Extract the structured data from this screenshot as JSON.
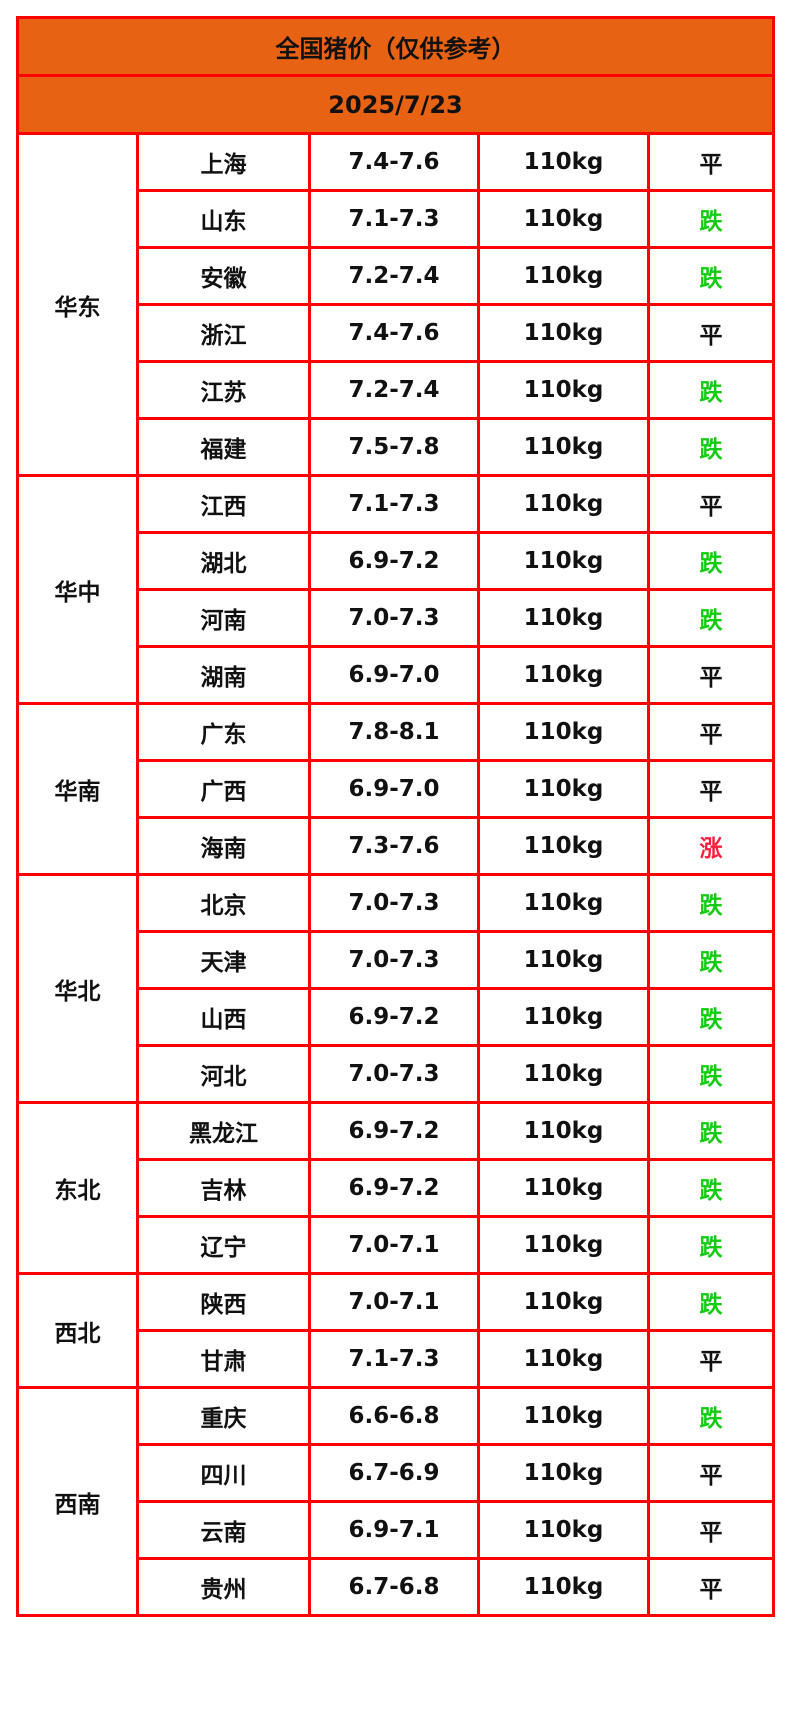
{
  "title": "全国猪价（仅供参考）",
  "date": "2025/7/23",
  "colors": {
    "header_bg": "#e86214",
    "border": "#ff0000",
    "up": "#ff2040",
    "down": "#11cc11",
    "flat": "#111111"
  },
  "regions": [
    {
      "name": "华东",
      "rows": [
        {
          "province": "上海",
          "price": "7.4-7.6",
          "weight": "110kg",
          "trend": "平"
        },
        {
          "province": "山东",
          "price": "7.1-7.3",
          "weight": "110kg",
          "trend": "跌"
        },
        {
          "province": "安徽",
          "price": "7.2-7.4",
          "weight": "110kg",
          "trend": "跌"
        },
        {
          "province": "浙江",
          "price": "7.4-7.6",
          "weight": "110kg",
          "trend": "平"
        },
        {
          "province": "江苏",
          "price": "7.2-7.4",
          "weight": "110kg",
          "trend": "跌"
        },
        {
          "province": "福建",
          "price": "7.5-7.8",
          "weight": "110kg",
          "trend": "跌"
        }
      ]
    },
    {
      "name": "华中",
      "rows": [
        {
          "province": "江西",
          "price": "7.1-7.3",
          "weight": "110kg",
          "trend": "平"
        },
        {
          "province": "湖北",
          "price": "6.9-7.2",
          "weight": "110kg",
          "trend": "跌"
        },
        {
          "province": "河南",
          "price": "7.0-7.3",
          "weight": "110kg",
          "trend": "跌"
        },
        {
          "province": "湖南",
          "price": "6.9-7.0",
          "weight": "110kg",
          "trend": "平"
        }
      ]
    },
    {
      "name": "华南",
      "rows": [
        {
          "province": "广东",
          "price": "7.8-8.1",
          "weight": "110kg",
          "trend": "平"
        },
        {
          "province": "广西",
          "price": "6.9-7.0",
          "weight": "110kg",
          "trend": "平"
        },
        {
          "province": "海南",
          "price": "7.3-7.6",
          "weight": "110kg",
          "trend": "涨"
        }
      ]
    },
    {
      "name": "华北",
      "rows": [
        {
          "province": "北京",
          "price": "7.0-7.3",
          "weight": "110kg",
          "trend": "跌"
        },
        {
          "province": "天津",
          "price": "7.0-7.3",
          "weight": "110kg",
          "trend": "跌"
        },
        {
          "province": "山西",
          "price": "6.9-7.2",
          "weight": "110kg",
          "trend": "跌"
        },
        {
          "province": "河北",
          "price": "7.0-7.3",
          "weight": "110kg",
          "trend": "跌"
        }
      ]
    },
    {
      "name": "东北",
      "rows": [
        {
          "province": "黑龙江",
          "price": "6.9-7.2",
          "weight": "110kg",
          "trend": "跌"
        },
        {
          "province": "吉林",
          "price": "6.9-7.2",
          "weight": "110kg",
          "trend": "跌"
        },
        {
          "province": "辽宁",
          "price": "7.0-7.1",
          "weight": "110kg",
          "trend": "跌"
        }
      ]
    },
    {
      "name": "西北",
      "rows": [
        {
          "province": "陕西",
          "price": "7.0-7.1",
          "weight": "110kg",
          "trend": "跌"
        },
        {
          "province": "甘肃",
          "price": "7.1-7.3",
          "weight": "110kg",
          "trend": "平"
        }
      ]
    },
    {
      "name": "西南",
      "rows": [
        {
          "province": "重庆",
          "price": "6.6-6.8",
          "weight": "110kg",
          "trend": "跌"
        },
        {
          "province": "四川",
          "price": "6.7-6.9",
          "weight": "110kg",
          "trend": "平"
        },
        {
          "province": "云南",
          "price": "6.9-7.1",
          "weight": "110kg",
          "trend": "平"
        },
        {
          "province": "贵州",
          "price": "6.7-6.8",
          "weight": "110kg",
          "trend": "平"
        }
      ]
    }
  ]
}
